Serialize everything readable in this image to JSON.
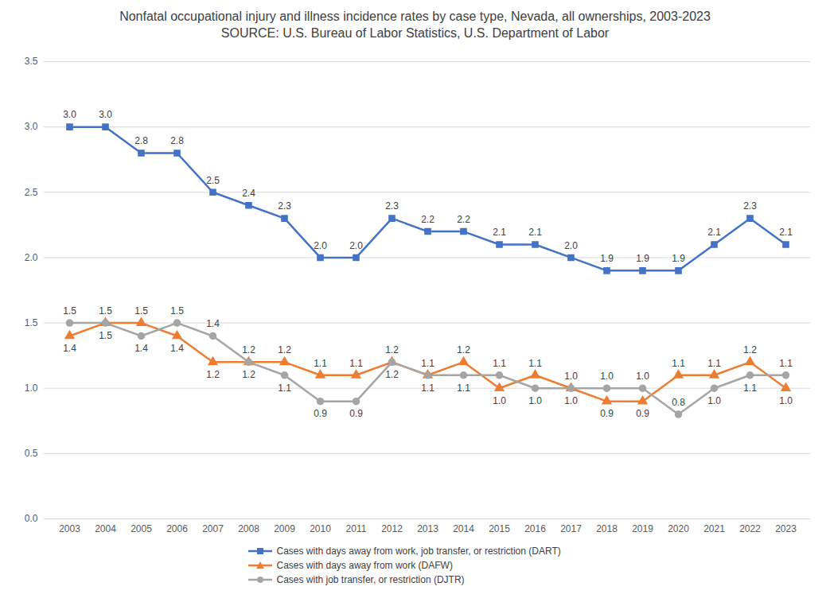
{
  "chart_data": {
    "type": "line",
    "title": "Nonfatal occupational injury and illness incidence rates by case type, Nevada, all ownerships, 2003-2023",
    "subtitle": "SOURCE: U.S. Bureau of Labor Statistics, U.S. Department of Labor",
    "categories": [
      "2003",
      "2004",
      "2005",
      "2006",
      "2007",
      "2008",
      "2009",
      "2010",
      "2011",
      "2012",
      "2013",
      "2014",
      "2015",
      "2016",
      "2017",
      "2018",
      "2019",
      "2020",
      "2021",
      "2022",
      "2023"
    ],
    "series": [
      {
        "name": "Cases with days away from work, job transfer, or restriction (DART)",
        "color": "#4472c4",
        "marker": "square",
        "values": [
          3.0,
          3.0,
          2.8,
          2.8,
          2.5,
          2.4,
          2.3,
          2.0,
          2.0,
          2.3,
          2.2,
          2.2,
          2.1,
          2.1,
          2.0,
          1.9,
          1.9,
          1.9,
          2.1,
          2.3,
          2.1
        ],
        "value_labels": [
          "3.0",
          "3.0",
          "2.8",
          "2.8",
          "2.5",
          "2.4",
          "2.3",
          "2.0",
          "2.0",
          "2.3",
          "2.2",
          "2.2",
          "2.1",
          "2.1",
          "2.0",
          "1.9",
          "1.9",
          "1.9",
          "2.1",
          "2.3",
          "2.1"
        ]
      },
      {
        "name": "Cases with days away from work (DAFW)",
        "color": "#ed7d31",
        "marker": "triangle",
        "values": [
          1.4,
          1.5,
          1.5,
          1.4,
          1.2,
          1.2,
          1.2,
          1.1,
          1.1,
          1.2,
          1.1,
          1.2,
          1.0,
          1.1,
          1.0,
          0.9,
          0.9,
          1.1,
          1.1,
          1.2,
          1.0
        ],
        "value_labels": [
          "1.4",
          "1.5",
          "1.5",
          "1.4",
          "1.2",
          "1.2",
          "1.2",
          "1.1",
          "1.1",
          "1.2",
          "1.1",
          "1.2",
          "1.0",
          "1.1",
          "1.0",
          "0.9",
          "0.9",
          "1.1",
          "1.1",
          "1.2",
          "1.0"
        ]
      },
      {
        "name": "Cases with job transfer, or restriction (DJTR)",
        "color": "#a5a5a5",
        "marker": "circle",
        "values": [
          1.5,
          1.5,
          1.4,
          1.5,
          1.4,
          1.2,
          1.1,
          0.9,
          0.9,
          1.2,
          1.1,
          1.1,
          1.1,
          1.0,
          1.0,
          1.0,
          1.0,
          0.8,
          1.0,
          1.1,
          1.1
        ],
        "value_labels": [
          "1.5",
          "1.5",
          "1.4",
          "1.5",
          "1.4",
          "1.2",
          "1.1",
          "0.9",
          "0.9",
          "1.2",
          "1.1",
          "1.1",
          "1.1",
          "1.0",
          "1.0",
          "1.0",
          "1.0",
          "0.8",
          "1.0",
          "1.1",
          "1.1"
        ]
      }
    ],
    "ylim": [
      0,
      3.5
    ],
    "yticks": [
      {
        "value": 0,
        "label": "0.0"
      },
      {
        "value": 0.5,
        "label": "0.5"
      },
      {
        "value": 1,
        "label": "1.0"
      },
      {
        "value": 1.5,
        "label": "1.5"
      },
      {
        "value": 2,
        "label": "2.0"
      },
      {
        "value": 2.5,
        "label": "2.5"
      },
      {
        "value": 3,
        "label": "3.0"
      },
      {
        "value": 3.5,
        "label": "3.5"
      }
    ],
    "grid": true,
    "data_labels": true,
    "legend": "bottom"
  }
}
